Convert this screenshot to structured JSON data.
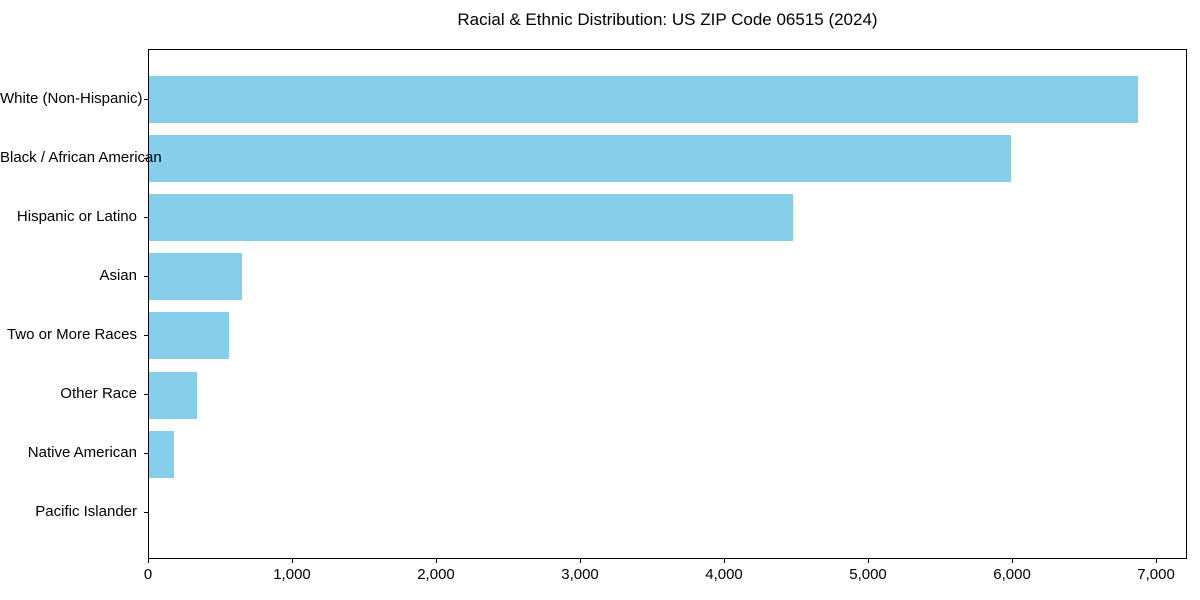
{
  "figure": {
    "background": "#ffffff"
  },
  "chart_data": {
    "type": "bar",
    "orientation": "horizontal",
    "title": "Racial & Ethnic Distribution: US ZIP Code 06515 (2024)",
    "categories": [
      "White (Non-Hispanic)",
      "Black / African American",
      "Hispanic or Latino",
      "Asian",
      "Two or More Races",
      "Other Race",
      "Native American",
      "Pacific Islander"
    ],
    "values": [
      6865,
      5985,
      4470,
      645,
      555,
      335,
      175,
      0
    ],
    "xlabel": "",
    "ylabel": "",
    "xlim": [
      0,
      7215
    ],
    "x_ticks": [
      0,
      1000,
      2000,
      3000,
      4000,
      5000,
      6000,
      7000
    ],
    "x_tick_labels": [
      "0",
      "1,000",
      "2,000",
      "3,000",
      "4,000",
      "5,000",
      "6,000",
      "7,000"
    ],
    "bar_color": "#87CEEB",
    "axis_color": "#000000",
    "text_color": "#000000",
    "grid": false,
    "legend": false
  }
}
